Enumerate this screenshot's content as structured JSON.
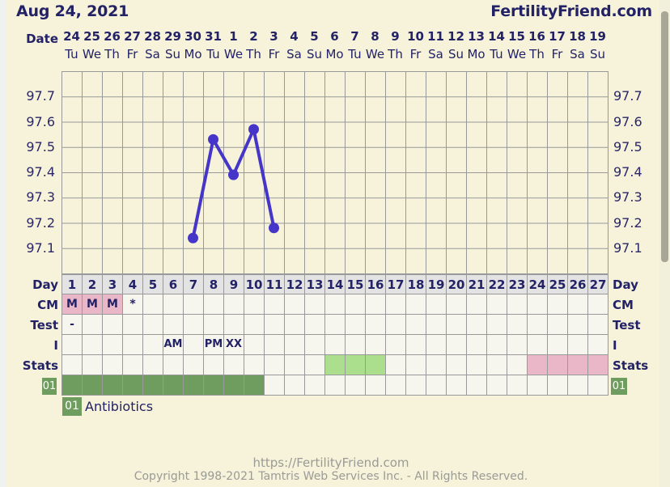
{
  "header": {
    "date_title": "Aug 24, 2021",
    "brand": "FertilityFriend.com"
  },
  "axis": {
    "date_label": "Date",
    "dates": [
      "24",
      "25",
      "26",
      "27",
      "28",
      "29",
      "30",
      "31",
      "1",
      "2",
      "3",
      "4",
      "5",
      "6",
      "7",
      "8",
      "9",
      "10",
      "11",
      "12",
      "13",
      "14",
      "15",
      "16",
      "17",
      "18",
      "19"
    ],
    "weekdays": [
      "Tu",
      "We",
      "Th",
      "Fr",
      "Sa",
      "Su",
      "Mo",
      "Tu",
      "We",
      "Th",
      "Fr",
      "Sa",
      "Su",
      "Mo",
      "Tu",
      "We",
      "Th",
      "Fr",
      "Sa",
      "Su",
      "Mo",
      "Tu",
      "We",
      "Th",
      "Fr",
      "Sa",
      "Su"
    ]
  },
  "chart_data": {
    "type": "line",
    "title": "Basal body temperature by cycle day",
    "x_days": [
      7,
      8,
      9,
      10,
      11
    ],
    "values": [
      97.14,
      97.53,
      97.39,
      97.57,
      97.18
    ],
    "y_ticks": [
      "97.7",
      "97.6",
      "97.5",
      "97.4",
      "97.3",
      "97.2",
      "97.1"
    ],
    "ylim": [
      97.0,
      97.8
    ],
    "x_columns": 27,
    "grid": true,
    "legend_position": "none",
    "line_color": "#4635c9"
  },
  "table": {
    "day_label": "Day",
    "days": [
      "1",
      "2",
      "3",
      "4",
      "5",
      "6",
      "7",
      "8",
      "9",
      "10",
      "11",
      "12",
      "13",
      "14",
      "15",
      "16",
      "17",
      "18",
      "19",
      "20",
      "21",
      "22",
      "23",
      "24",
      "25",
      "26",
      "27"
    ],
    "cm_label": "CM",
    "cm_texts": {
      "1": "M",
      "2": "M",
      "3": "M",
      "4": "*"
    },
    "cm_pink_days": [
      1,
      2,
      3
    ],
    "test_label": "Test",
    "test_texts": {
      "1": "-"
    },
    "i_label": "I",
    "i_texts": {
      "6": "AM",
      "8": "PM",
      "9": "XX"
    },
    "stats_label": "Stats",
    "stats_green_days": [
      14,
      15,
      16
    ],
    "stats_pink_days": [
      24,
      25,
      26,
      27
    ],
    "meds_badge": "01",
    "meds_filled_days": [
      1,
      2,
      3,
      4,
      5,
      6,
      7,
      8,
      9,
      10
    ]
  },
  "legend": {
    "badge": "01",
    "label": "Antibiotics"
  },
  "footer": {
    "url": "https://FertilityFriend.com",
    "copyright": "Copyright 1998-2021 Tamtris Web Services Inc. - All Rights Reserved."
  },
  "colors": {
    "background": "#f6f3da",
    "navy_text": "#232266",
    "grid_line": "#999999",
    "line": "#4635c9",
    "day_header_bg": "#e3e3e3",
    "cell_bg": "#f6f6ee",
    "cm_pink": "#e9b7c8",
    "stats_green": "#abde8d",
    "stats_pink": "#e9b7c8",
    "meds_green": "#6f9d5f"
  }
}
